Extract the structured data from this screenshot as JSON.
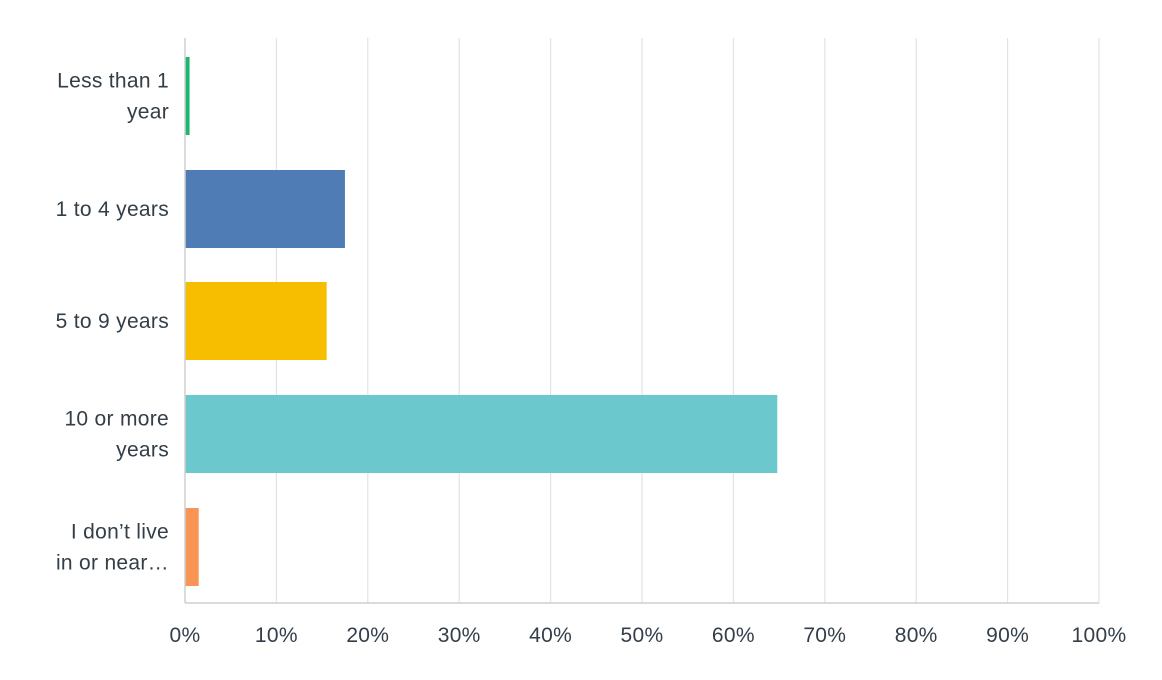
{
  "chart_data": {
    "type": "bar",
    "orientation": "horizontal",
    "title": "",
    "xlabel": "",
    "ylabel": "",
    "xlim": [
      0,
      100
    ],
    "x_tick_labels": [
      "0%",
      "10%",
      "20%",
      "30%",
      "40%",
      "50%",
      "60%",
      "70%",
      "80%",
      "90%",
      "100%"
    ],
    "grid": true,
    "categories": [
      {
        "label_lines": [
          "Less than 1",
          "year"
        ],
        "value": 0.5,
        "color": "#1db66e"
      },
      {
        "label_lines": [
          "1 to 4 years"
        ],
        "value": 17.5,
        "color": "#507cb6"
      },
      {
        "label_lines": [
          "5 to 9 years"
        ],
        "value": 15.5,
        "color": "#f7be00"
      },
      {
        "label_lines": [
          "10 or more",
          "years"
        ],
        "value": 64.8,
        "color": "#6bc8cd"
      },
      {
        "label_lines": [
          "I don’t live",
          "in or near…"
        ],
        "value": 1.5,
        "color": "#f89454"
      }
    ]
  }
}
